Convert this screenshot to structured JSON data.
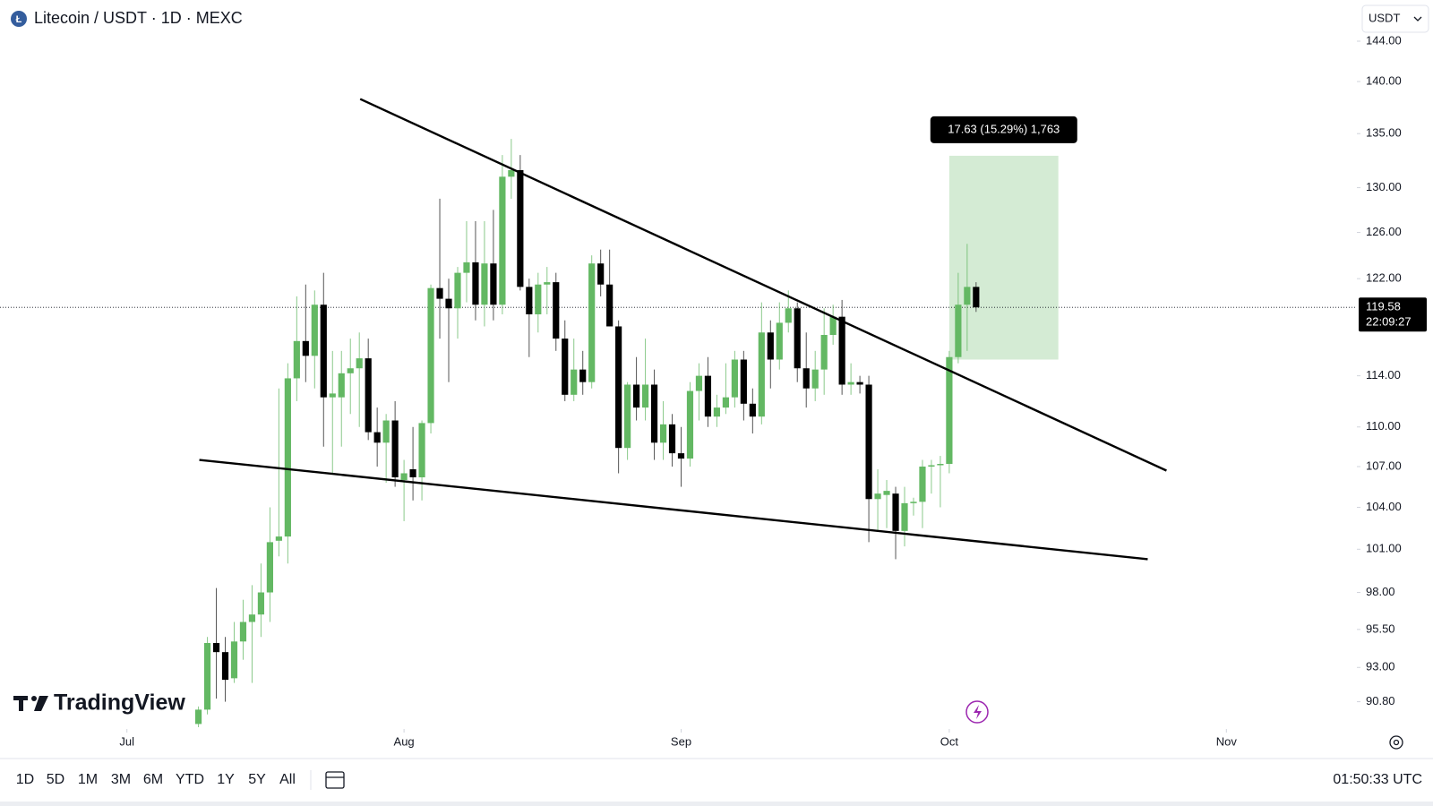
{
  "header": {
    "title": "Litecoin / USDT · 1D · MEXC",
    "currency": "USDT"
  },
  "chart_data": {
    "type": "candlestick",
    "log_scale": true,
    "up_color": "#63b863",
    "down_color": "#000000",
    "x": [
      8,
      9,
      10,
      11,
      12,
      13,
      14,
      15,
      16,
      17,
      18,
      19,
      20,
      21,
      22,
      23,
      24,
      25,
      26,
      27,
      28,
      29,
      30,
      31,
      32,
      33,
      34,
      35,
      36,
      37,
      38,
      39,
      40,
      41,
      42,
      43,
      44,
      45,
      46,
      47,
      48,
      49,
      50,
      51,
      52,
      53,
      54,
      55,
      56,
      57,
      58,
      59,
      60,
      61,
      62,
      63,
      64,
      65,
      66,
      67,
      68,
      69,
      70,
      71,
      72,
      73,
      74,
      75,
      76,
      77,
      78,
      79,
      80,
      81,
      82,
      83,
      84,
      85,
      86,
      87,
      88,
      89,
      90,
      91,
      92,
      93,
      94,
      95
    ],
    "open": [
      89.4,
      90.3,
      94.6,
      94,
      92.3,
      94.7,
      96,
      96.5,
      98,
      101.6,
      101.9,
      113.8,
      116.8,
      115.6,
      119.8,
      112.3,
      112.3,
      114.2,
      114.6,
      115.4,
      109.6,
      108.8,
      110.5,
      106,
      106.8,
      106.2,
      110.3,
      121.2,
      120.3,
      119.5,
      122.5,
      123.4,
      119.8,
      123.3,
      119.8,
      131,
      131.6,
      121.3,
      119,
      121.5,
      121.7,
      117,
      112.5,
      114.5,
      113.5,
      123.3,
      121.5,
      118,
      108.4,
      113.3,
      111.5,
      113.3,
      108.8,
      110.2,
      108,
      107.6,
      112.8,
      114,
      110.8,
      111.5,
      112.3,
      115.3,
      111.8,
      110.8,
      117.5,
      115.3,
      118.3,
      119.5,
      114.6,
      113,
      114.5,
      117.3,
      118.8,
      113.3,
      113.5,
      113.3,
      104.6,
      104.9,
      105,
      102.3,
      104.3,
      104.4,
      107,
      107.1,
      107.2,
      115.5,
      119.8,
      121.3
    ],
    "high": [
      90.5,
      95,
      98.3,
      95,
      96,
      97.5,
      98.5,
      100,
      104,
      113,
      115,
      120.5,
      121.5,
      121,
      122.5,
      116,
      116,
      117,
      117.5,
      117,
      111.5,
      111,
      112,
      107.5,
      110,
      110.5,
      121.5,
      129,
      122,
      123,
      127,
      127,
      127,
      128,
      133,
      134.5,
      133,
      122,
      122.5,
      123,
      122.5,
      118.5,
      117,
      116,
      124,
      124.5,
      124.5,
      118.5,
      113.5,
      115.5,
      117,
      114.5,
      112,
      111,
      110,
      113.5,
      115,
      115.5,
      112.5,
      115,
      116,
      116,
      113,
      120,
      118.5,
      120,
      121,
      120,
      117.5,
      116,
      119.5,
      119.8,
      120.2,
      115,
      114,
      114,
      106.8,
      106,
      105.5,
      105.5,
      104.7,
      107.5,
      107.5,
      107.8,
      116,
      122.5,
      125,
      121.7
    ],
    "low": [
      89.2,
      90,
      91,
      90.8,
      92,
      93.5,
      92,
      95,
      96,
      100.5,
      100,
      112,
      113.5,
      113,
      108.5,
      106.5,
      108.5,
      111,
      110,
      109,
      107,
      105.8,
      105.5,
      103,
      104.5,
      104.5,
      109.5,
      117,
      113.5,
      117,
      120,
      118.5,
      118,
      118.5,
      119,
      129,
      121,
      115.5,
      117.5,
      119,
      116,
      112,
      112,
      112.5,
      113,
      120.5,
      118,
      106.5,
      107.5,
      110.5,
      110.5,
      107.5,
      107.5,
      107,
      105.5,
      107,
      110.5,
      110,
      110,
      111,
      111.5,
      110.5,
      109.5,
      110.2,
      113,
      114.5,
      117.5,
      113.5,
      111.5,
      112,
      112.5,
      116.5,
      112.5,
      112.5,
      112.6,
      101.5,
      102.3,
      102.5,
      100.3,
      101.2,
      103.4,
      102.5,
      105,
      104,
      106.5,
      115,
      116,
      119.2
    ],
    "close": [
      90.3,
      94.6,
      94,
      92.2,
      94.7,
      96,
      96.5,
      98,
      101.5,
      101.9,
      113.8,
      116.8,
      115.6,
      119.8,
      112.3,
      112.6,
      114.2,
      114.6,
      115.4,
      109.6,
      108.8,
      110.5,
      106.2,
      106.5,
      106.2,
      110.3,
      121.2,
      120.3,
      119.5,
      122.5,
      123.4,
      119.8,
      123.3,
      119.8,
      131,
      131.6,
      121.3,
      119,
      121.5,
      121.7,
      117,
      112.5,
      114.5,
      113.5,
      123.3,
      121.5,
      118,
      108.4,
      113.3,
      111.5,
      113.3,
      108.8,
      110.2,
      108,
      107.6,
      112.8,
      114,
      110.8,
      111.5,
      112.3,
      115.3,
      111.8,
      110.8,
      117.5,
      115.3,
      118.3,
      119.5,
      114.6,
      113,
      114.5,
      117.3,
      118.8,
      113.3,
      113.5,
      113.3,
      104.6,
      105,
      105.2,
      102.3,
      104.3,
      104.4,
      107,
      107.1,
      107.2,
      115.5,
      119.8,
      121.3,
      119.58
    ],
    "xlim": [
      -14.2,
      137.6
    ],
    "xticks": [
      {
        "value": 0,
        "label": "Jul"
      },
      {
        "value": 31,
        "label": "Aug"
      },
      {
        "value": 62,
        "label": "Sep"
      },
      {
        "value": 92,
        "label": "Oct"
      },
      {
        "value": 123,
        "label": "Nov"
      }
    ],
    "ylim": [
      89.2,
      148.2
    ],
    "yticks": [
      {
        "value": 144,
        "label": "144.00"
      },
      {
        "value": 140,
        "label": "140.00"
      },
      {
        "value": 135,
        "label": "135.00"
      },
      {
        "value": 130,
        "label": "130.00"
      },
      {
        "value": 126,
        "label": "126.00"
      },
      {
        "value": 122,
        "label": "122.00"
      },
      {
        "value": 114,
        "label": "114.00"
      },
      {
        "value": 110,
        "label": "110.00"
      },
      {
        "value": 107,
        "label": "107.00"
      },
      {
        "value": 104,
        "label": "104.00"
      },
      {
        "value": 101,
        "label": "101.00"
      },
      {
        "value": 98,
        "label": "98.00"
      },
      {
        "value": 95.5,
        "label": "95.50"
      },
      {
        "value": 93,
        "label": "93.00"
      },
      {
        "value": 90.8,
        "label": "90.80"
      }
    ],
    "last_price": 119.58,
    "countdown": "22:09:27",
    "trendlines": [
      {
        "x": [
          26.1,
          116.3
        ],
        "y": [
          138.3,
          106.7
        ]
      },
      {
        "x": [
          8.1,
          114.2
        ],
        "y": [
          107.5,
          100.3
        ]
      }
    ],
    "position": {
      "x": [
        92,
        104.2
      ],
      "entry": 115.3,
      "target": 132.93,
      "label": "17.63 (15.29%) 1,763"
    }
  },
  "toolbar": {
    "ranges": [
      "1D",
      "5D",
      "1M",
      "3M",
      "6M",
      "YTD",
      "1Y",
      "5Y",
      "All"
    ],
    "clock": "01:50:33 UTC"
  },
  "branding": "TradingView"
}
